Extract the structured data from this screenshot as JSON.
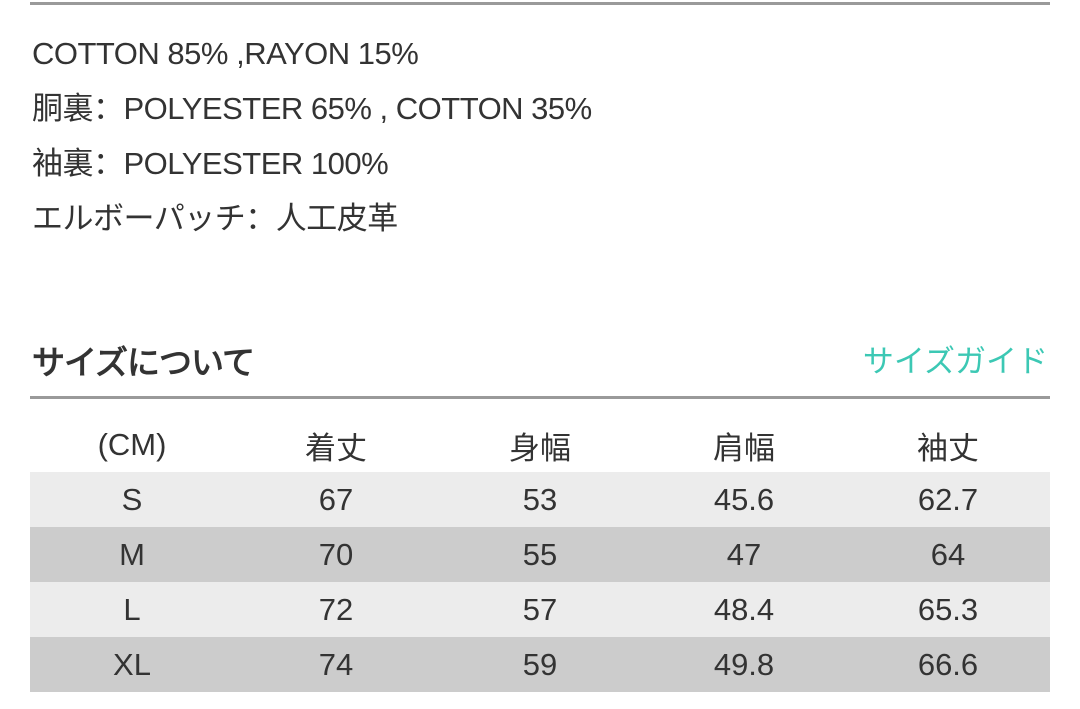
{
  "materials": [
    "COTTON 85% ,RAYON 15%",
    "胴裏：POLYESTER 65% , COTTON 35%",
    "袖裏：POLYESTER 100%",
    "エルボーパッチ：人工皮革"
  ],
  "size_section": {
    "heading": "サイズについて",
    "guide_link": "サイズガイド",
    "accent_color": "#3cc8b4"
  },
  "size_table": {
    "headers": [
      "(CM)",
      "着丈",
      "身幅",
      "肩幅",
      "袖丈"
    ],
    "rows": [
      [
        "S",
        "67",
        "53",
        "45.6",
        "62.7"
      ],
      [
        "M",
        "70",
        "55",
        "47",
        "64"
      ],
      [
        "L",
        "72",
        "57",
        "48.4",
        "65.3"
      ],
      [
        "XL",
        "74",
        "59",
        "49.8",
        "66.6"
      ]
    ]
  }
}
